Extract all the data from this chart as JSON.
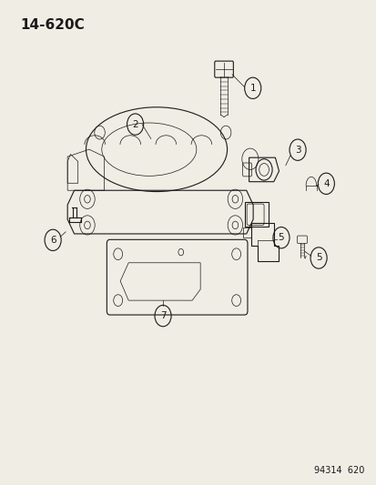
{
  "title": "14-620C",
  "footer": "94314  620",
  "bg_color": "#f0ede4",
  "line_color": "#1a1a1a",
  "title_fontsize": 11,
  "footer_fontsize": 7,
  "label_fontsize": 7.5
}
